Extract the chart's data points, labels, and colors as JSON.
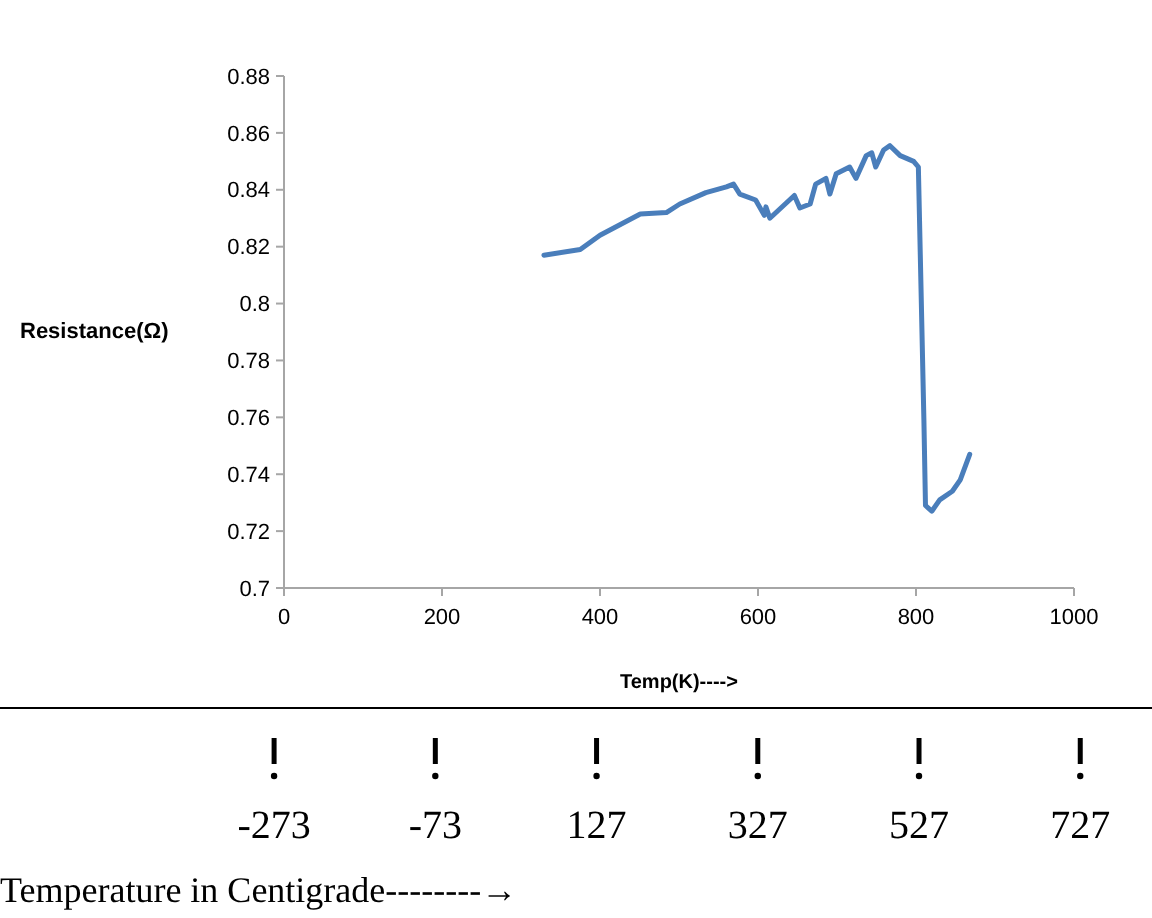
{
  "chart_data": {
    "type": "line",
    "xlabel": "Temp(K)---->",
    "ylabel": "Resistance(Ω)",
    "x2label": "Temperature in Centigrade--------→",
    "xlim": [
      0,
      1000
    ],
    "xticks": [
      0,
      200,
      400,
      600,
      800,
      1000
    ],
    "ylim": [
      0.7,
      0.88
    ],
    "yticks": [
      0.7,
      0.72,
      0.74,
      0.76,
      0.78,
      0.8,
      0.82,
      0.84,
      0.86,
      0.88
    ],
    "x2lim": [
      -613,
      816
    ],
    "x2ticks": [
      -273,
      -73,
      127,
      327,
      527,
      727
    ],
    "series": [
      {
        "color": "#4a7ebb",
        "x": [
          329,
          375,
          400,
          451,
          484,
          501,
          534,
          560,
          569,
          577,
          597,
          608,
          610,
          615,
          646,
          653,
          666,
          673,
          686,
          691,
          699,
          716,
          724,
          737,
          744,
          749,
          759,
          767,
          780,
          797,
          803,
          810,
          812,
          820,
          830,
          846,
          856,
          868
        ],
        "values": [
          0.817,
          0.819,
          0.824,
          0.8315,
          0.832,
          0.835,
          0.839,
          0.841,
          0.842,
          0.8385,
          0.8364,
          0.831,
          0.834,
          0.83,
          0.838,
          0.8336,
          0.835,
          0.842,
          0.844,
          0.8385,
          0.8456,
          0.848,
          0.844,
          0.852,
          0.853,
          0.848,
          0.854,
          0.8555,
          0.852,
          0.85,
          0.848,
          0.759,
          0.729,
          0.727,
          0.731,
          0.734,
          0.738,
          0.747
        ]
      }
    ]
  }
}
